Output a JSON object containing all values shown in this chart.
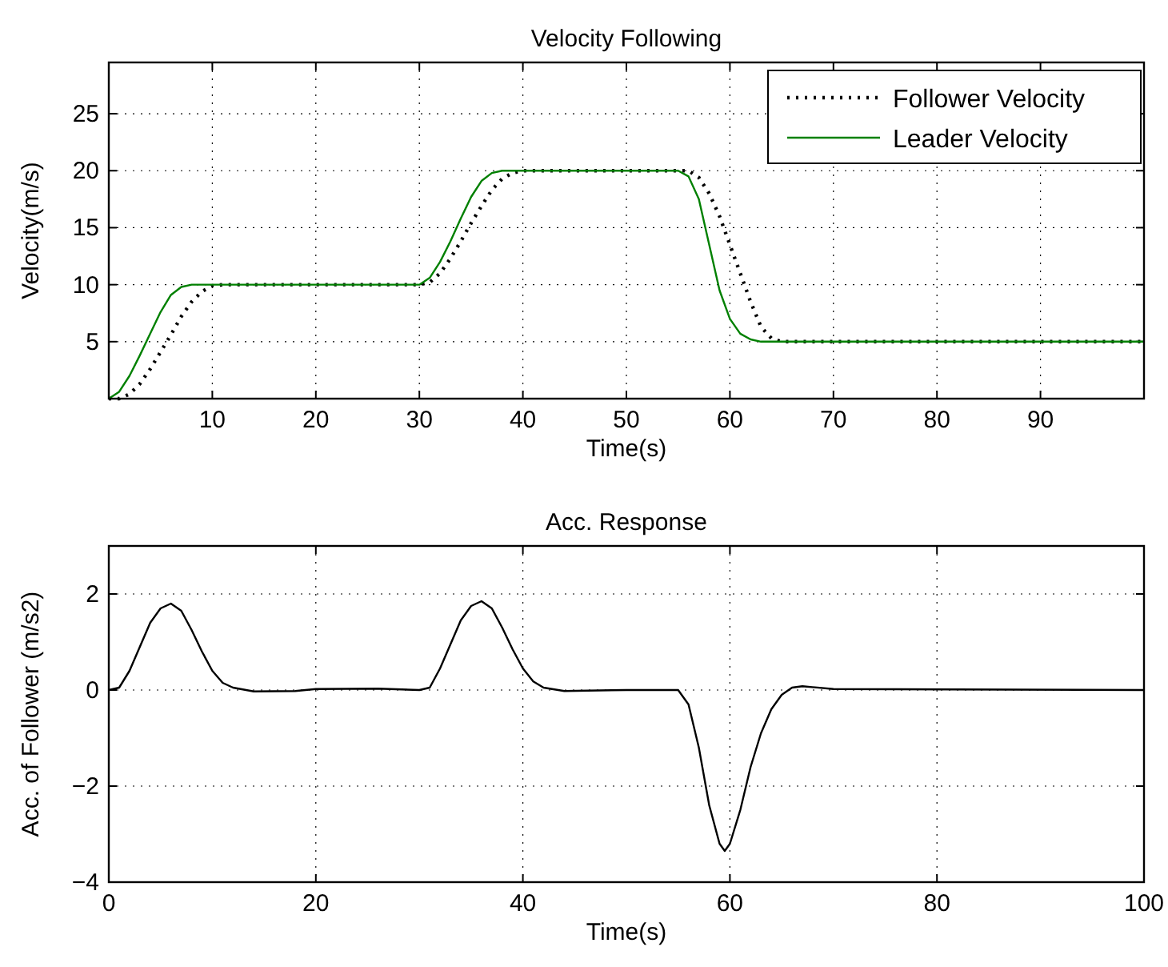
{
  "chart_data": [
    {
      "type": "line",
      "title": "Velocity Following",
      "xlabel": "Time(s)",
      "ylabel": "Velocity(m/s)",
      "xlim": [
        0,
        100
      ],
      "xticks": [
        10,
        20,
        30,
        40,
        50,
        60,
        70,
        80,
        90
      ],
      "ylim": [
        0,
        29.5
      ],
      "yticks": [
        5,
        10,
        15,
        20,
        25
      ],
      "grid": true,
      "legend": "top right",
      "series": [
        {
          "name": "Follower Velocity",
          "color": "#000000",
          "line_style": "dotted",
          "x": [
            0,
            1,
            2,
            3,
            4,
            5,
            6,
            7,
            8,
            9,
            10,
            11,
            30,
            31,
            32,
            33,
            34,
            35,
            36,
            37,
            38,
            39,
            40,
            56,
            57,
            58,
            59,
            60,
            61,
            62,
            63,
            64,
            65,
            100
          ],
          "values": [
            0,
            0,
            0.4,
            1.3,
            2.6,
            4.1,
            5.6,
            7.2,
            8.5,
            9.4,
            9.9,
            10,
            10,
            10.2,
            11,
            12.3,
            13.8,
            15.4,
            16.9,
            18.3,
            19.3,
            19.8,
            20,
            20,
            19.4,
            18,
            16,
            13.5,
            11,
            8.5,
            6.3,
            5.3,
            5,
            5
          ]
        },
        {
          "name": "Leader Velocity",
          "color": "#008000",
          "line_style": "solid",
          "x": [
            0,
            1,
            2,
            3,
            4,
            5,
            6,
            7,
            8,
            30,
            31,
            32,
            33,
            34,
            35,
            36,
            37,
            38,
            55,
            56,
            57,
            58,
            59,
            60,
            61,
            62,
            63,
            100
          ],
          "values": [
            0,
            0.6,
            2,
            3.8,
            5.7,
            7.6,
            9.1,
            9.8,
            10,
            10,
            10.6,
            12,
            13.8,
            15.8,
            17.7,
            19.1,
            19.8,
            20,
            20,
            19.5,
            17.5,
            13.5,
            9.5,
            7,
            5.7,
            5.2,
            5,
            5
          ]
        }
      ]
    },
    {
      "type": "line",
      "title": "Acc. Response",
      "xlabel": "Time(s)",
      "ylabel": "Acc. of Follower (m/s2)",
      "xlim": [
        0,
        100
      ],
      "xticks": [
        0,
        20,
        40,
        60,
        80,
        100
      ],
      "ylim": [
        -4,
        3
      ],
      "yticks": [
        -4,
        -2,
        0,
        2
      ],
      "grid": true,
      "series": [
        {
          "color": "#000000",
          "line_style": "solid",
          "x": [
            0,
            1,
            2,
            3,
            4,
            5,
            6,
            7,
            8,
            9,
            10,
            11,
            12,
            14,
            18,
            20,
            26,
            30,
            31,
            32,
            33,
            34,
            35,
            36,
            37,
            38,
            39,
            40,
            41,
            42,
            44,
            50,
            55,
            56,
            57,
            58,
            59,
            59.5,
            60,
            61,
            62,
            63,
            64,
            65,
            66,
            67,
            70,
            100
          ],
          "values": [
            0,
            0.05,
            0.4,
            0.9,
            1.4,
            1.7,
            1.8,
            1.65,
            1.25,
            0.8,
            0.4,
            0.15,
            0.05,
            -0.03,
            -0.02,
            0.02,
            0.03,
            0,
            0.05,
            0.45,
            0.95,
            1.45,
            1.75,
            1.85,
            1.7,
            1.3,
            0.85,
            0.45,
            0.18,
            0.05,
            -0.02,
            0,
            0,
            -0.3,
            -1.2,
            -2.4,
            -3.2,
            -3.35,
            -3.2,
            -2.5,
            -1.6,
            -0.9,
            -0.4,
            -0.1,
            0.05,
            0.08,
            0.02,
            0
          ]
        }
      ]
    }
  ]
}
